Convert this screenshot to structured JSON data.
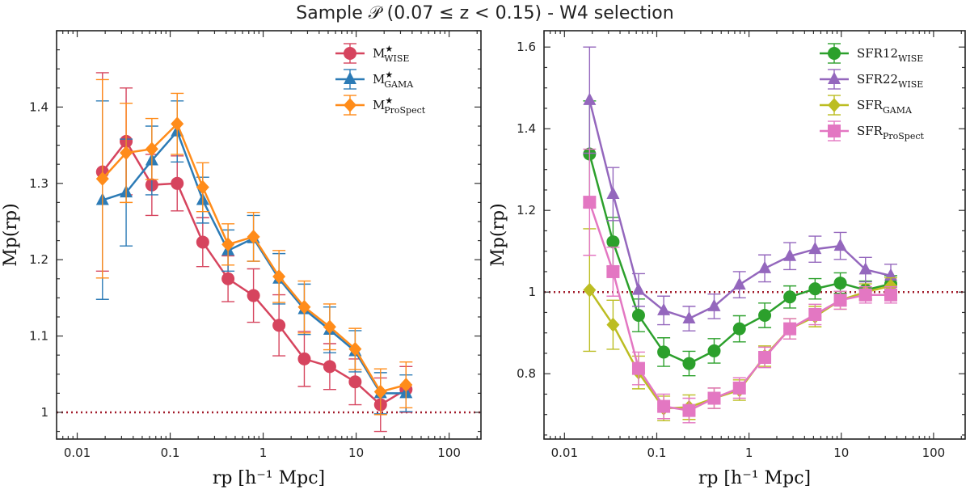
{
  "title": "Sample 𝒫 (0.07 ≤ z < 0.15) -  W4 selection",
  "chart_data": [
    {
      "type": "line",
      "xscale": "log",
      "xlim": [
        0.006,
        220
      ],
      "ylim": [
        0.965,
        1.5
      ],
      "xlabel": "rp [h⁻¹ Mpc]",
      "ylabel": "Mp(rp)",
      "xticks": [
        0.01,
        0.1,
        1,
        10,
        100
      ],
      "xtick_labels": [
        "0.01",
        "0.1",
        "1",
        "10",
        "100"
      ],
      "yticks": [
        1.0,
        1.1,
        1.2,
        1.3,
        1.4
      ],
      "ytick_labels": [
        "1",
        "1.1",
        "1.2",
        "1.3",
        "1.4"
      ],
      "reference_line": 1.0,
      "reference_color": "#a21c2b",
      "legend_position": "top-right",
      "x": [
        0.0187,
        0.0336,
        0.0635,
        0.119,
        0.224,
        0.419,
        0.787,
        1.48,
        2.77,
        5.2,
        9.76,
        18.3,
        34.4
      ],
      "series": [
        {
          "name": "M*WISE",
          "label_main": "M",
          "label_sup": "★",
          "label_sub": "WISE",
          "color": "#d6445e",
          "marker": "circle",
          "values": [
            1.315,
            1.355,
            1.298,
            1.3,
            1.223,
            1.175,
            1.153,
            1.114,
            1.07,
            1.06,
            1.04,
            1.01,
            1.03
          ],
          "errors": [
            0.13,
            0.07,
            0.04,
            0.036,
            0.032,
            0.03,
            0.035,
            0.04,
            0.036,
            0.03,
            0.03,
            0.035,
            0.03
          ]
        },
        {
          "name": "M*GAMA",
          "label_main": "M",
          "label_sup": "★",
          "label_sub": "GAMA",
          "color": "#2c7bb6",
          "marker": "triangle",
          "values": [
            1.278,
            1.288,
            1.33,
            1.368,
            1.278,
            1.212,
            1.228,
            1.175,
            1.135,
            1.108,
            1.08,
            1.025,
            1.025
          ],
          "errors": [
            0.13,
            0.07,
            0.045,
            0.04,
            0.03,
            0.027,
            0.03,
            0.033,
            0.033,
            0.03,
            0.027,
            0.027,
            0.024
          ]
        },
        {
          "name": "M*ProSpect",
          "label_main": "M",
          "label_sup": "★",
          "label_sub": "ProSpect",
          "color": "#ff8c1a",
          "marker": "diamond",
          "values": [
            1.306,
            1.34,
            1.345,
            1.378,
            1.295,
            1.22,
            1.23,
            1.178,
            1.138,
            1.112,
            1.083,
            1.027,
            1.036
          ],
          "errors": [
            0.13,
            0.065,
            0.04,
            0.04,
            0.032,
            0.027,
            0.032,
            0.034,
            0.034,
            0.03,
            0.027,
            0.03,
            0.03
          ]
        }
      ]
    },
    {
      "type": "line",
      "xscale": "log",
      "xlim": [
        0.006,
        220
      ],
      "ylim": [
        0.64,
        1.64
      ],
      "xlabel": "rp [h⁻¹ Mpc]",
      "ylabel": "Mp(rp)",
      "xticks": [
        0.01,
        0.1,
        1,
        10,
        100
      ],
      "xtick_labels": [
        "0.01",
        "0.1",
        "1",
        "10",
        "100"
      ],
      "yticks": [
        0.8,
        1.0,
        1.2,
        1.4,
        1.6
      ],
      "ytick_labels": [
        "0.8",
        "1",
        "1.2",
        "1.4",
        "1.6"
      ],
      "reference_line": 1.0,
      "reference_color": "#a21c2b",
      "legend_position": "top-right",
      "x": [
        0.0187,
        0.0336,
        0.0635,
        0.119,
        0.224,
        0.419,
        0.787,
        1.48,
        2.77,
        5.2,
        9.76,
        18.3,
        34.4
      ],
      "series": [
        {
          "name": "SFR12WISE",
          "label_main": "SFR12",
          "label_sup": "",
          "label_sub": "WISE",
          "color": "#2ca02c",
          "marker": "circle",
          "values": [
            1.338,
            1.123,
            0.943,
            0.853,
            0.825,
            0.856,
            0.91,
            0.943,
            0.988,
            1.008,
            1.022,
            1.005,
            1.02
          ],
          "errors": [
            0.13,
            0.06,
            0.04,
            0.035,
            0.03,
            0.03,
            0.032,
            0.03,
            0.027,
            0.025,
            0.025,
            0.022,
            0.02
          ]
        },
        {
          "name": "SFR22WISE",
          "label_main": "SFR22",
          "label_sup": "",
          "label_sub": "WISE",
          "color": "#9467bd",
          "marker": "triangle",
          "values": [
            1.47,
            1.24,
            1.005,
            0.955,
            0.935,
            0.965,
            1.018,
            1.058,
            1.088,
            1.105,
            1.113,
            1.055,
            1.04
          ],
          "errors": [
            0.13,
            0.065,
            0.04,
            0.035,
            0.03,
            0.03,
            0.032,
            0.033,
            0.033,
            0.032,
            0.033,
            0.03,
            0.028
          ]
        },
        {
          "name": "SFRGAMA",
          "label_main": "SFR",
          "label_sup": "",
          "label_sub": "GAMA",
          "color": "#bcbd22",
          "marker": "diamond",
          "values": [
            1.005,
            0.92,
            0.803,
            0.715,
            0.718,
            0.74,
            0.76,
            0.843,
            0.91,
            0.94,
            0.98,
            1.0,
            1.015
          ],
          "errors": [
            0.15,
            0.06,
            0.04,
            0.03,
            0.03,
            0.025,
            0.025,
            0.025,
            0.025,
            0.025,
            0.022,
            0.02,
            0.02
          ]
        },
        {
          "name": "SFRProSpect",
          "label_main": "SFR",
          "label_sup": "",
          "label_sub": "ProSpect",
          "color": "#e377c2",
          "marker": "square",
          "values": [
            1.22,
            1.05,
            0.813,
            0.72,
            0.71,
            0.74,
            0.765,
            0.84,
            0.91,
            0.945,
            0.98,
            0.993,
            0.993
          ],
          "errors": [
            0.13,
            0.06,
            0.04,
            0.03,
            0.03,
            0.025,
            0.025,
            0.025,
            0.025,
            0.025,
            0.022,
            0.02,
            0.02
          ]
        }
      ]
    }
  ]
}
